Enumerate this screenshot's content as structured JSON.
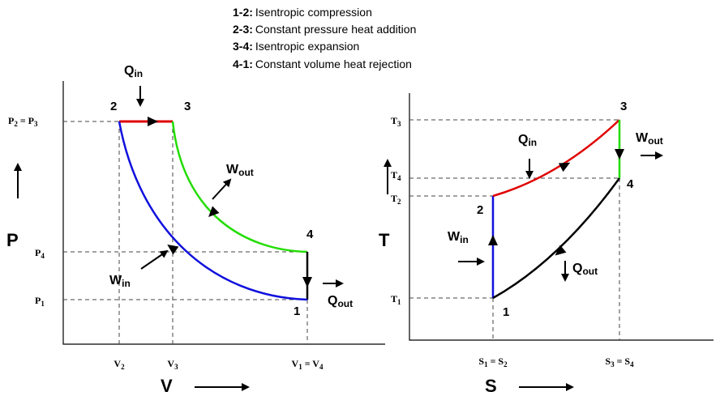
{
  "legend": [
    {
      "key": "1-2:",
      "text": "Isentropic compression"
    },
    {
      "key": "2-3:",
      "text": "Constant pressure heat addition"
    },
    {
      "key": "3-4:",
      "text": "Isentropic expansion"
    },
    {
      "key": "4-1:",
      "text": "Constant volume heat rejection"
    }
  ],
  "pv": {
    "y_axis": "P",
    "x_axis": "V",
    "points": [
      "1",
      "2",
      "3",
      "4"
    ],
    "yticks": [
      [
        "P",
        "2",
        " = P",
        "3"
      ],
      [
        "P",
        "4"
      ],
      [
        "P",
        "1"
      ]
    ],
    "xticks": [
      [
        "V",
        "2"
      ],
      [
        "V",
        "3"
      ],
      [
        "V",
        "1",
        " = V",
        "4"
      ]
    ],
    "heat_in": [
      "Q",
      "in"
    ],
    "work_out": [
      "W",
      "out"
    ],
    "work_in": [
      "W",
      "in"
    ],
    "heat_out": [
      "Q",
      "out"
    ]
  },
  "ts": {
    "y_axis": "T",
    "x_axis": "S",
    "points": [
      "1",
      "2",
      "3",
      "4"
    ],
    "yticks": [
      [
        "T",
        "3"
      ],
      [
        "T",
        "4"
      ],
      [
        "T",
        "2"
      ],
      [
        "T",
        "1"
      ]
    ],
    "xticks": [
      [
        "S",
        "1",
        " = S",
        "2"
      ],
      [
        "S",
        "3",
        " = S",
        "4"
      ]
    ],
    "heat_in": [
      "Q",
      "in"
    ],
    "work_out": [
      "W",
      "out"
    ],
    "work_in": [
      "W",
      "in"
    ],
    "heat_out": [
      "Q",
      "out"
    ]
  }
}
